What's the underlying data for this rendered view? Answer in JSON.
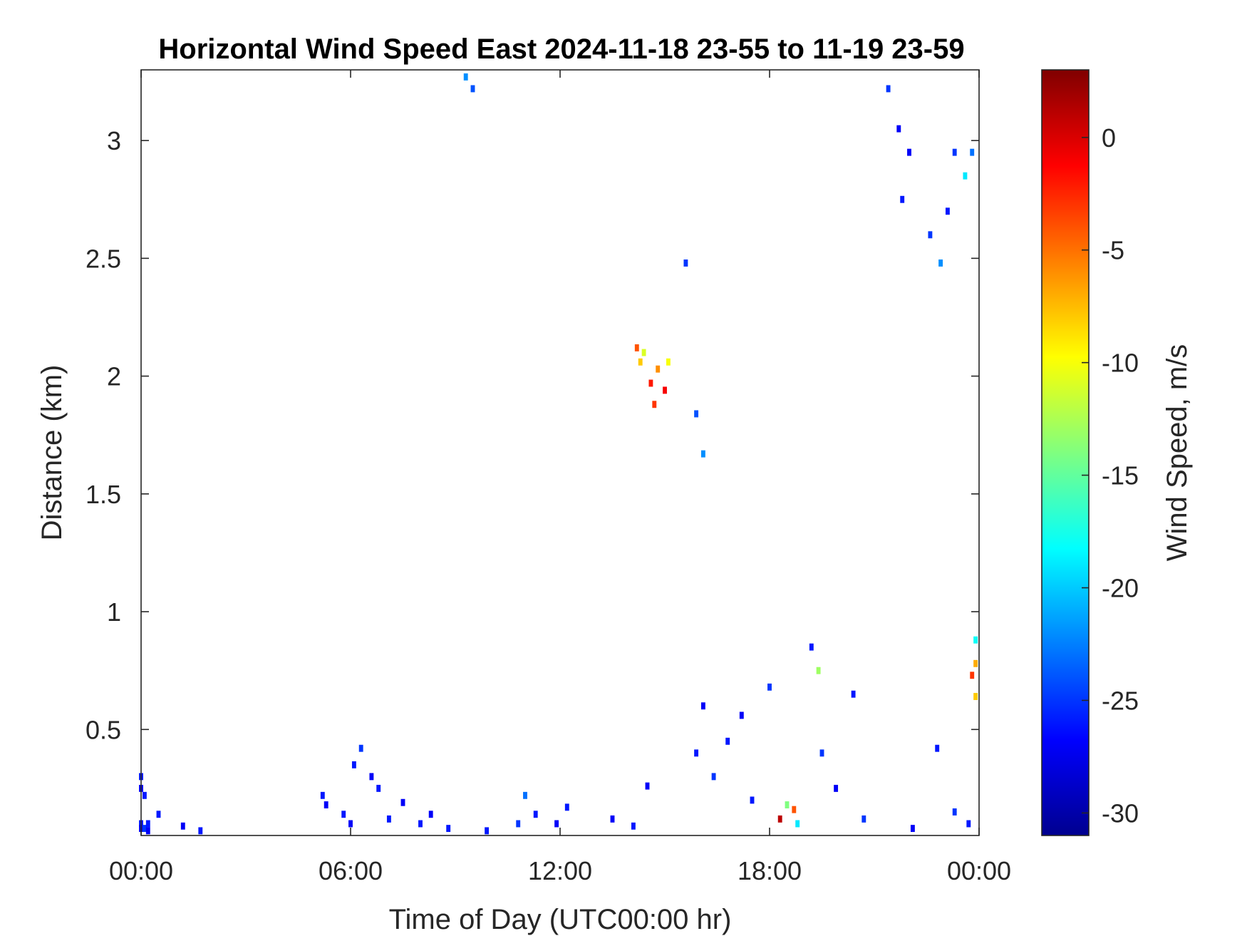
{
  "chart_data": {
    "type": "heatmap",
    "title": "Horizontal Wind Speed East 2024-11-18 23-55 to 11-19 23-59",
    "xlabel": "Time of Day (UTC00:00 hr)",
    "ylabel": "Distance (km)",
    "colorbar_label": "Wind Speed, m/s",
    "x_unit": "hours",
    "xlim": [
      0,
      24
    ],
    "ylim": [
      0.05,
      3.3
    ],
    "clim": [
      -31,
      3
    ],
    "colormap": "jet",
    "grid": false,
    "x_ticks": [
      {
        "value": 0,
        "label": "00:00"
      },
      {
        "value": 6,
        "label": "06:00"
      },
      {
        "value": 12,
        "label": "12:00"
      },
      {
        "value": 18,
        "label": "18:00"
      },
      {
        "value": 24,
        "label": "00:00"
      }
    ],
    "y_ticks": [
      {
        "value": 0.5,
        "label": "0.5"
      },
      {
        "value": 1,
        "label": "1"
      },
      {
        "value": 1.5,
        "label": "1.5"
      },
      {
        "value": 2,
        "label": "2"
      },
      {
        "value": 2.5,
        "label": "2.5"
      },
      {
        "value": 3,
        "label": "3"
      }
    ],
    "colorbar_ticks": [
      {
        "value": 0,
        "label": "0"
      },
      {
        "value": -5,
        "label": "-5"
      },
      {
        "value": -10,
        "label": "-10"
      },
      {
        "value": -15,
        "label": "-15"
      },
      {
        "value": -20,
        "label": "-20"
      },
      {
        "value": -25,
        "label": "-25"
      },
      {
        "value": -30,
        "label": "-30"
      }
    ],
    "cells": [
      {
        "t": 0.0,
        "h": 0.3,
        "v": -26
      },
      {
        "t": 0.0,
        "h": 0.25,
        "v": -27
      },
      {
        "t": 0.0,
        "h": 0.1,
        "v": -26
      },
      {
        "t": 0.0,
        "h": 0.08,
        "v": -27
      },
      {
        "t": 0.1,
        "h": 0.22,
        "v": -26
      },
      {
        "t": 0.1,
        "h": 0.08,
        "v": -25
      },
      {
        "t": 0.2,
        "h": 0.1,
        "v": -26
      },
      {
        "t": 0.2,
        "h": 0.07,
        "v": -27
      },
      {
        "t": 0.5,
        "h": 0.14,
        "v": -26
      },
      {
        "t": 1.2,
        "h": 0.09,
        "v": -27
      },
      {
        "t": 1.7,
        "h": 0.07,
        "v": -26
      },
      {
        "t": 5.2,
        "h": 0.22,
        "v": -26
      },
      {
        "t": 5.3,
        "h": 0.18,
        "v": -27
      },
      {
        "t": 5.8,
        "h": 0.14,
        "v": -26
      },
      {
        "t": 6.0,
        "h": 0.1,
        "v": -27
      },
      {
        "t": 6.1,
        "h": 0.35,
        "v": -26
      },
      {
        "t": 6.3,
        "h": 0.42,
        "v": -25
      },
      {
        "t": 6.6,
        "h": 0.3,
        "v": -27
      },
      {
        "t": 6.8,
        "h": 0.25,
        "v": -26
      },
      {
        "t": 7.1,
        "h": 0.12,
        "v": -26
      },
      {
        "t": 7.5,
        "h": 0.19,
        "v": -27
      },
      {
        "t": 8.0,
        "h": 0.1,
        "v": -26
      },
      {
        "t": 8.3,
        "h": 0.14,
        "v": -27
      },
      {
        "t": 8.8,
        "h": 0.08,
        "v": -26
      },
      {
        "t": 9.3,
        "h": 3.27,
        "v": -22
      },
      {
        "t": 9.5,
        "h": 3.22,
        "v": -24
      },
      {
        "t": 9.9,
        "h": 0.07,
        "v": -26
      },
      {
        "t": 10.8,
        "h": 0.1,
        "v": -25
      },
      {
        "t": 11.0,
        "h": 0.22,
        "v": -23
      },
      {
        "t": 11.3,
        "h": 0.14,
        "v": -26
      },
      {
        "t": 11.9,
        "h": 0.1,
        "v": -27
      },
      {
        "t": 12.2,
        "h": 0.17,
        "v": -26
      },
      {
        "t": 13.5,
        "h": 0.12,
        "v": -27
      },
      {
        "t": 14.1,
        "h": 0.09,
        "v": -26
      },
      {
        "t": 14.5,
        "h": 0.26,
        "v": -27
      },
      {
        "t": 14.2,
        "h": 2.12,
        "v": -4
      },
      {
        "t": 14.3,
        "h": 2.06,
        "v": -8
      },
      {
        "t": 14.4,
        "h": 2.1,
        "v": -11
      },
      {
        "t": 14.6,
        "h": 1.97,
        "v": -2
      },
      {
        "t": 14.7,
        "h": 1.88,
        "v": -3
      },
      {
        "t": 14.8,
        "h": 2.03,
        "v": -6
      },
      {
        "t": 15.0,
        "h": 1.94,
        "v": -1
      },
      {
        "t": 15.1,
        "h": 2.06,
        "v": -10
      },
      {
        "t": 15.6,
        "h": 2.48,
        "v": -25
      },
      {
        "t": 15.9,
        "h": 1.84,
        "v": -24
      },
      {
        "t": 16.1,
        "h": 1.67,
        "v": -22
      },
      {
        "t": 15.9,
        "h": 0.4,
        "v": -26
      },
      {
        "t": 16.1,
        "h": 0.6,
        "v": -27
      },
      {
        "t": 16.4,
        "h": 0.3,
        "v": -25
      },
      {
        "t": 16.8,
        "h": 0.45,
        "v": -26
      },
      {
        "t": 17.2,
        "h": 0.56,
        "v": -27
      },
      {
        "t": 17.5,
        "h": 0.2,
        "v": -26
      },
      {
        "t": 18.0,
        "h": 0.68,
        "v": -25
      },
      {
        "t": 18.3,
        "h": 0.12,
        "v": 1
      },
      {
        "t": 18.5,
        "h": 0.18,
        "v": -14
      },
      {
        "t": 18.7,
        "h": 0.16,
        "v": -4
      },
      {
        "t": 18.8,
        "h": 0.1,
        "v": -19
      },
      {
        "t": 19.2,
        "h": 0.85,
        "v": -26
      },
      {
        "t": 19.4,
        "h": 0.75,
        "v": -13
      },
      {
        "t": 19.5,
        "h": 0.4,
        "v": -25
      },
      {
        "t": 19.9,
        "h": 0.25,
        "v": -27
      },
      {
        "t": 20.4,
        "h": 0.65,
        "v": -26
      },
      {
        "t": 20.7,
        "h": 0.12,
        "v": -25
      },
      {
        "t": 21.4,
        "h": 3.22,
        "v": -25
      },
      {
        "t": 21.7,
        "h": 3.05,
        "v": -27
      },
      {
        "t": 21.8,
        "h": 2.75,
        "v": -26
      },
      {
        "t": 22.0,
        "h": 2.95,
        "v": -27
      },
      {
        "t": 22.6,
        "h": 2.6,
        "v": -25
      },
      {
        "t": 22.9,
        "h": 2.48,
        "v": -22
      },
      {
        "t": 23.1,
        "h": 2.7,
        "v": -26
      },
      {
        "t": 23.3,
        "h": 2.95,
        "v": -25
      },
      {
        "t": 23.6,
        "h": 2.85,
        "v": -19
      },
      {
        "t": 23.8,
        "h": 2.95,
        "v": -23
      },
      {
        "t": 23.9,
        "h": 0.88,
        "v": -18
      },
      {
        "t": 23.9,
        "h": 0.78,
        "v": -7
      },
      {
        "t": 23.8,
        "h": 0.73,
        "v": -3
      },
      {
        "t": 23.9,
        "h": 0.64,
        "v": -8
      },
      {
        "t": 23.3,
        "h": 0.15,
        "v": -25
      },
      {
        "t": 23.7,
        "h": 0.1,
        "v": -26
      },
      {
        "t": 22.8,
        "h": 0.42,
        "v": -26
      },
      {
        "t": 22.1,
        "h": 0.08,
        "v": -27
      }
    ]
  }
}
